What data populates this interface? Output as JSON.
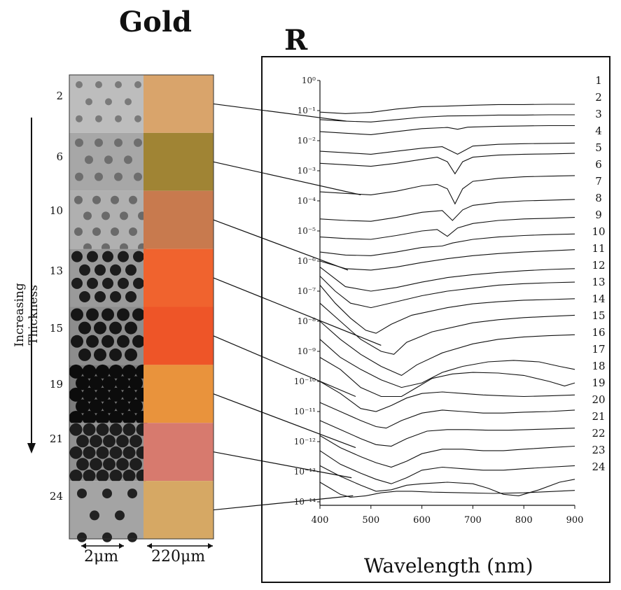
{
  "left_panel": {
    "title": "Gold",
    "axis_label": "Increasing Thickness",
    "thickness_labels": [
      "2",
      "6",
      "10",
      "13",
      "15",
      "19",
      "21",
      "24"
    ],
    "scale_bars": {
      "sem": "2μm",
      "optical": "220μm"
    },
    "optical_colors": [
      "#d9a46b",
      "#a08434",
      "#c87a4e",
      "#f0632e",
      "#ee5528",
      "#e9933c",
      "#d77a6e",
      "#d6a864"
    ]
  },
  "right_panel": {
    "title": "R"
  },
  "chart_data": {
    "type": "line",
    "xlabel": "Wavelength (nm)",
    "ylabel": "",
    "xlim": [
      400,
      900
    ],
    "x_ticks": [
      400,
      500,
      600,
      700,
      800,
      900
    ],
    "y_tick_labels": [
      "10⁰",
      "10⁻¹",
      "10⁻²",
      "10⁻³",
      "10⁻⁴",
      "10⁻⁵",
      "10⁻⁶",
      "10⁻⁷",
      "10⁻⁸",
      "10⁻⁹",
      "10⁻¹⁰",
      "10⁻¹¹",
      "10⁻¹²",
      "10⁻¹³",
      "10⁻¹⁴"
    ],
    "scale": "log, curves offset vertically",
    "series": [
      {
        "name": "1",
        "x": [
          400,
          450,
          500,
          550,
          600,
          650,
          700,
          750,
          800,
          850,
          900
        ],
        "y": [
          -1.05,
          -1.1,
          -1.06,
          -0.95,
          -0.87,
          -0.85,
          -0.82,
          -0.8,
          -0.8,
          -0.79,
          -0.79
        ]
      },
      {
        "name": "2",
        "x": [
          400,
          450,
          500,
          550,
          600,
          650,
          700,
          750,
          800,
          850,
          900
        ],
        "y": [
          -1.3,
          -1.35,
          -1.38,
          -1.3,
          -1.22,
          -1.18,
          -1.17,
          -1.15,
          -1.15,
          -1.14,
          -1.14
        ]
      },
      {
        "name": "3",
        "x": [
          400,
          450,
          500,
          550,
          600,
          650,
          670,
          690,
          750,
          800,
          850,
          900
        ],
        "y": [
          -1.7,
          -1.75,
          -1.8,
          -1.7,
          -1.6,
          -1.56,
          -1.62,
          -1.55,
          -1.52,
          -1.51,
          -1.5,
          -1.5
        ]
      },
      {
        "name": "4",
        "x": [
          400,
          450,
          500,
          550,
          600,
          640,
          670,
          700,
          750,
          800,
          850,
          900
        ],
        "y": [
          -2.35,
          -2.4,
          -2.45,
          -2.35,
          -2.25,
          -2.2,
          -2.45,
          -2.18,
          -2.12,
          -2.1,
          -2.09,
          -2.08
        ]
      },
      {
        "name": "5",
        "x": [
          400,
          450,
          500,
          550,
          600,
          630,
          650,
          665,
          680,
          700,
          750,
          800,
          850,
          900
        ],
        "y": [
          -2.75,
          -2.8,
          -2.85,
          -2.75,
          -2.62,
          -2.55,
          -2.7,
          -3.1,
          -2.7,
          -2.55,
          -2.48,
          -2.45,
          -2.44,
          -2.42
        ]
      },
      {
        "name": "6",
        "x": [
          400,
          450,
          500,
          550,
          600,
          630,
          650,
          665,
          680,
          700,
          750,
          800,
          850,
          900
        ],
        "y": [
          -3.7,
          -3.75,
          -3.8,
          -3.68,
          -3.5,
          -3.45,
          -3.6,
          -4.1,
          -3.6,
          -3.35,
          -3.25,
          -3.2,
          -3.18,
          -3.16
        ]
      },
      {
        "name": "7",
        "x": [
          400,
          450,
          500,
          550,
          600,
          640,
          660,
          680,
          700,
          750,
          800,
          850,
          900
        ],
        "y": [
          -4.6,
          -4.65,
          -4.68,
          -4.55,
          -4.38,
          -4.32,
          -4.65,
          -4.3,
          -4.15,
          -4.05,
          -4.0,
          -3.98,
          -3.95
        ]
      },
      {
        "name": "8",
        "x": [
          400,
          450,
          500,
          550,
          600,
          630,
          650,
          670,
          700,
          750,
          800,
          850,
          900
        ],
        "y": [
          -5.2,
          -5.25,
          -5.28,
          -5.15,
          -5.0,
          -4.95,
          -5.18,
          -4.9,
          -4.75,
          -4.65,
          -4.6,
          -4.58,
          -4.55
        ]
      },
      {
        "name": "9",
        "x": [
          400,
          450,
          500,
          550,
          600,
          640,
          660,
          700,
          750,
          800,
          850,
          900
        ],
        "y": [
          -5.7,
          -5.8,
          -5.82,
          -5.7,
          -5.55,
          -5.5,
          -5.4,
          -5.28,
          -5.2,
          -5.15,
          -5.12,
          -5.1
        ]
      },
      {
        "name": "10",
        "x": [
          400,
          450,
          500,
          550,
          600,
          650,
          700,
          750,
          800,
          850,
          900
        ],
        "y": [
          -6.0,
          -6.25,
          -6.3,
          -6.2,
          -6.05,
          -5.92,
          -5.82,
          -5.75,
          -5.7,
          -5.66,
          -5.62
        ]
      },
      {
        "name": "11",
        "x": [
          400,
          450,
          500,
          550,
          600,
          650,
          700,
          750,
          800,
          850,
          900
        ],
        "y": [
          -6.2,
          -6.85,
          -7.0,
          -6.88,
          -6.7,
          -6.55,
          -6.45,
          -6.38,
          -6.32,
          -6.28,
          -6.25
        ]
      },
      {
        "name": "12",
        "x": [
          400,
          430,
          460,
          500,
          550,
          600,
          650,
          700,
          750,
          800,
          850,
          900
        ],
        "y": [
          -6.5,
          -7.0,
          -7.4,
          -7.55,
          -7.35,
          -7.15,
          -7.0,
          -6.9,
          -6.8,
          -6.75,
          -6.72,
          -6.7
        ]
      },
      {
        "name": "13",
        "x": [
          400,
          430,
          460,
          490,
          510,
          540,
          580,
          650,
          700,
          750,
          800,
          850,
          900
        ],
        "y": [
          -6.8,
          -7.4,
          -7.9,
          -8.3,
          -8.4,
          -8.1,
          -7.8,
          -7.55,
          -7.42,
          -7.35,
          -7.3,
          -7.28,
          -7.25
        ]
      },
      {
        "name": "14",
        "x": [
          400,
          440,
          480,
          520,
          545,
          570,
          620,
          700,
          750,
          800,
          850,
          900
        ],
        "y": [
          -7.4,
          -8.0,
          -8.6,
          -9.0,
          -9.1,
          -8.7,
          -8.35,
          -8.05,
          -7.95,
          -7.88,
          -7.84,
          -7.8
        ]
      },
      {
        "name": "15",
        "x": [
          400,
          440,
          480,
          520,
          560,
          590,
          640,
          700,
          750,
          800,
          850,
          900
        ],
        "y": [
          -8.0,
          -8.6,
          -9.1,
          -9.5,
          -9.8,
          -9.45,
          -9.05,
          -8.75,
          -8.6,
          -8.52,
          -8.48,
          -8.45
        ]
      },
      {
        "name": "16",
        "x": [
          400,
          440,
          480,
          520,
          560,
          600,
          640,
          680,
          730,
          780,
          830,
          870,
          900
        ],
        "y": [
          -8.6,
          -9.2,
          -9.6,
          -9.95,
          -10.2,
          -10.05,
          -9.7,
          -9.5,
          -9.35,
          -9.3,
          -9.35,
          -9.5,
          -9.6
        ]
      },
      {
        "name": "17",
        "x": [
          400,
          440,
          480,
          520,
          560,
          590,
          620,
          660,
          700,
          750,
          800,
          850,
          880,
          900
        ],
        "y": [
          -9.2,
          -9.6,
          -10.2,
          -10.5,
          -10.5,
          -10.2,
          -9.9,
          -9.75,
          -9.7,
          -9.72,
          -9.8,
          -10.0,
          -10.15,
          -10.05
        ]
      },
      {
        "name": "18",
        "x": [
          400,
          440,
          480,
          510,
          540,
          570,
          600,
          640,
          680,
          720,
          760,
          800,
          850,
          900
        ],
        "y": [
          -10.0,
          -10.4,
          -10.9,
          -11.0,
          -10.8,
          -10.55,
          -10.4,
          -10.35,
          -10.4,
          -10.45,
          -10.48,
          -10.5,
          -10.48,
          -10.45
        ]
      },
      {
        "name": "19",
        "x": [
          400,
          440,
          480,
          510,
          530,
          560,
          600,
          640,
          680,
          720,
          760,
          800,
          850,
          900
        ],
        "y": [
          -10.7,
          -11.0,
          -11.3,
          -11.5,
          -11.55,
          -11.3,
          -11.05,
          -10.95,
          -11.0,
          -11.05,
          -11.05,
          -11.02,
          -11.0,
          -10.95
        ]
      },
      {
        "name": "20",
        "x": [
          400,
          440,
          480,
          510,
          540,
          570,
          610,
          650,
          690,
          730,
          770,
          810,
          850,
          900
        ],
        "y": [
          -11.3,
          -11.6,
          -11.9,
          -12.1,
          -12.15,
          -11.9,
          -11.65,
          -11.6,
          -11.6,
          -11.62,
          -11.62,
          -11.6,
          -11.58,
          -11.55
        ]
      },
      {
        "name": "21",
        "x": [
          400,
          440,
          480,
          510,
          540,
          570,
          600,
          640,
          680,
          720,
          760,
          800,
          850,
          900
        ],
        "y": [
          -11.8,
          -12.2,
          -12.5,
          -12.7,
          -12.85,
          -12.65,
          -12.4,
          -12.25,
          -12.25,
          -12.3,
          -12.3,
          -12.25,
          -12.2,
          -12.15
        ]
      },
      {
        "name": "22",
        "x": [
          400,
          440,
          480,
          510,
          540,
          570,
          600,
          640,
          680,
          720,
          760,
          800,
          850,
          900
        ],
        "y": [
          -12.3,
          -12.75,
          -13.05,
          -13.25,
          -13.4,
          -13.2,
          -12.95,
          -12.85,
          -12.9,
          -12.95,
          -12.95,
          -12.9,
          -12.85,
          -12.8
        ]
      },
      {
        "name": "23",
        "x": [
          400,
          440,
          480,
          510,
          540,
          570,
          600,
          650,
          700,
          730,
          760,
          790,
          830,
          870,
          900
        ],
        "y": [
          -12.8,
          -13.15,
          -13.45,
          -13.65,
          -13.6,
          -13.45,
          -13.4,
          -13.35,
          -13.4,
          -13.55,
          -13.75,
          -13.8,
          -13.6,
          -13.35,
          -13.25
        ]
      },
      {
        "name": "24",
        "x": [
          400,
          420,
          440,
          460,
          490,
          520,
          550,
          580,
          620,
          680,
          740,
          800,
          850,
          900
        ],
        "y": [
          -13.35,
          -13.55,
          -13.75,
          -13.85,
          -13.8,
          -13.7,
          -13.65,
          -13.65,
          -13.68,
          -13.7,
          -13.72,
          -13.7,
          -13.66,
          -13.62
        ]
      }
    ]
  }
}
